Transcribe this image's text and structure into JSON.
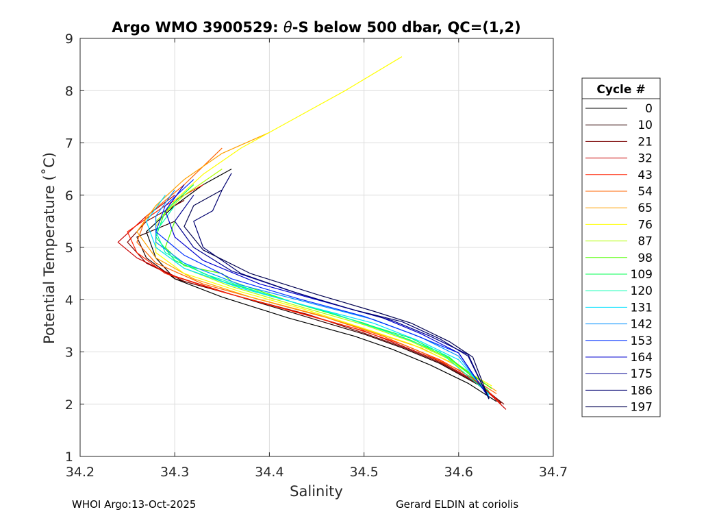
{
  "chart_data": {
    "type": "line",
    "title": {
      "prefix": "Argo WMO 3900529: ",
      "theta": "θ",
      "suffix": "-S below 500 dbar,  QC=(1,2)"
    },
    "xlabel": "Salinity",
    "ylabel": "Potential Temperature (˚C)",
    "xlim": [
      34.2,
      34.7
    ],
    "ylim": [
      1,
      9
    ],
    "xticks": [
      "34.2",
      "34.3",
      "34.4",
      "34.5",
      "34.6",
      "34.7"
    ],
    "xtick_values": [
      34.2,
      34.3,
      34.4,
      34.5,
      34.6,
      34.7
    ],
    "yticks": [
      "1",
      "2",
      "3",
      "4",
      "5",
      "6",
      "7",
      "8",
      "9"
    ],
    "ytick_values": [
      1,
      2,
      3,
      4,
      5,
      6,
      7,
      8,
      9
    ],
    "grid": true,
    "legend_title": "Cycle #",
    "legend_position": "right",
    "colormap": "jet",
    "series": [
      {
        "name": "0",
        "color": "#000000",
        "values": [
          [
            34.36,
            6.5
          ],
          [
            34.33,
            6.2
          ],
          [
            34.3,
            5.8
          ],
          [
            34.27,
            5.3
          ],
          [
            34.28,
            4.8
          ],
          [
            34.3,
            4.4
          ],
          [
            34.35,
            4.05
          ],
          [
            34.42,
            3.65
          ],
          [
            34.49,
            3.3
          ],
          [
            34.53,
            3.05
          ],
          [
            34.57,
            2.75
          ],
          [
            34.61,
            2.4
          ],
          [
            34.64,
            2.05
          ]
        ]
      },
      {
        "name": "10",
        "color": "#2a0000",
        "values": [
          [
            34.3,
            5.5
          ],
          [
            34.26,
            5.2
          ],
          [
            34.27,
            4.8
          ],
          [
            34.3,
            4.4
          ],
          [
            34.36,
            4.1
          ],
          [
            34.43,
            3.72
          ],
          [
            34.5,
            3.34
          ],
          [
            34.54,
            3.08
          ],
          [
            34.58,
            2.78
          ],
          [
            34.62,
            2.38
          ],
          [
            34.645,
            2.02
          ]
        ]
      },
      {
        "name": "21",
        "color": "#7a0000",
        "values": [
          [
            34.31,
            5.9
          ],
          [
            34.27,
            5.5
          ],
          [
            34.25,
            5.1
          ],
          [
            34.27,
            4.7
          ],
          [
            34.31,
            4.35
          ],
          [
            34.37,
            4.05
          ],
          [
            34.44,
            3.72
          ],
          [
            34.5,
            3.36
          ],
          [
            34.54,
            3.1
          ],
          [
            34.58,
            2.8
          ],
          [
            34.62,
            2.4
          ],
          [
            34.648,
            2.0
          ]
        ]
      },
      {
        "name": "32",
        "color": "#c80000",
        "values": [
          [
            34.3,
            6.0
          ],
          [
            34.27,
            5.6
          ],
          [
            34.24,
            5.1
          ],
          [
            34.26,
            4.8
          ],
          [
            34.3,
            4.45
          ],
          [
            34.36,
            4.1
          ],
          [
            34.43,
            3.76
          ],
          [
            34.5,
            3.4
          ],
          [
            34.54,
            3.12
          ],
          [
            34.58,
            2.82
          ],
          [
            34.62,
            2.42
          ],
          [
            34.65,
            1.9
          ]
        ]
      },
      {
        "name": "43",
        "color": "#ff2000",
        "values": [
          [
            34.33,
            6.2
          ],
          [
            34.29,
            5.8
          ],
          [
            34.25,
            5.3
          ],
          [
            34.26,
            4.9
          ],
          [
            34.29,
            4.5
          ],
          [
            34.35,
            4.15
          ],
          [
            34.42,
            3.8
          ],
          [
            34.49,
            3.45
          ],
          [
            34.54,
            3.15
          ],
          [
            34.58,
            2.85
          ],
          [
            34.62,
            2.45
          ],
          [
            34.645,
            2.0
          ]
        ]
      },
      {
        "name": "54",
        "color": "#ff6400",
        "values": [
          [
            34.35,
            6.9
          ],
          [
            34.31,
            6.2
          ],
          [
            34.27,
            5.6
          ],
          [
            34.26,
            5.1
          ],
          [
            34.28,
            4.7
          ],
          [
            34.33,
            4.3
          ],
          [
            34.39,
            4.0
          ],
          [
            34.46,
            3.66
          ],
          [
            34.52,
            3.3
          ],
          [
            34.56,
            3.0
          ],
          [
            34.6,
            2.66
          ],
          [
            34.64,
            2.2
          ]
        ]
      },
      {
        "name": "65",
        "color": "#ffa000",
        "values": [
          [
            34.4,
            7.2
          ],
          [
            34.35,
            6.8
          ],
          [
            34.31,
            6.3
          ],
          [
            34.28,
            5.8
          ],
          [
            34.26,
            5.3
          ],
          [
            34.28,
            4.8
          ],
          [
            34.32,
            4.4
          ],
          [
            34.38,
            4.05
          ],
          [
            34.45,
            3.72
          ],
          [
            34.51,
            3.38
          ],
          [
            34.56,
            3.08
          ],
          [
            34.6,
            2.72
          ],
          [
            34.64,
            2.25
          ]
        ]
      },
      {
        "name": "76",
        "color": "#ffff00",
        "values": [
          [
            34.54,
            8.65
          ],
          [
            34.48,
            8.0
          ],
          [
            34.42,
            7.4
          ],
          [
            34.37,
            6.9
          ],
          [
            34.33,
            6.4
          ],
          [
            34.3,
            5.9
          ],
          [
            34.28,
            5.4
          ],
          [
            34.28,
            4.9
          ],
          [
            34.31,
            4.5
          ],
          [
            34.37,
            4.15
          ],
          [
            34.44,
            3.8
          ],
          [
            34.5,
            3.45
          ],
          [
            34.55,
            3.15
          ],
          [
            34.59,
            2.82
          ],
          [
            34.635,
            2.35
          ]
        ]
      },
      {
        "name": "87",
        "color": "#b0ff00",
        "values": [
          [
            34.35,
            6.5
          ],
          [
            34.31,
            6.0
          ],
          [
            34.28,
            5.5
          ],
          [
            34.28,
            5.0
          ],
          [
            34.31,
            4.6
          ],
          [
            34.36,
            4.25
          ],
          [
            34.43,
            3.88
          ],
          [
            34.5,
            3.52
          ],
          [
            34.55,
            3.2
          ],
          [
            34.59,
            2.86
          ],
          [
            34.635,
            2.3
          ]
        ]
      },
      {
        "name": "98",
        "color": "#50ff00",
        "values": [
          [
            34.3,
            5.5
          ],
          [
            34.29,
            5.0
          ],
          [
            34.31,
            4.65
          ],
          [
            34.35,
            4.5
          ],
          [
            34.36,
            4.35
          ],
          [
            34.43,
            3.92
          ],
          [
            34.5,
            3.55
          ],
          [
            34.55,
            3.22
          ],
          [
            34.59,
            2.88
          ],
          [
            34.635,
            2.3
          ]
        ]
      },
      {
        "name": "109",
        "color": "#00ff50",
        "values": [
          [
            34.32,
            6.2
          ],
          [
            34.29,
            5.7
          ],
          [
            34.28,
            5.2
          ],
          [
            34.3,
            4.75
          ],
          [
            34.35,
            4.35
          ],
          [
            34.42,
            3.98
          ],
          [
            34.49,
            3.6
          ],
          [
            34.55,
            3.26
          ],
          [
            34.59,
            2.9
          ],
          [
            34.632,
            2.25
          ]
        ]
      },
      {
        "name": "120",
        "color": "#00ffb0",
        "values": [
          [
            34.3,
            5.8
          ],
          [
            34.28,
            5.3
          ],
          [
            34.29,
            4.9
          ],
          [
            34.33,
            4.5
          ],
          [
            34.4,
            4.08
          ],
          [
            34.47,
            3.72
          ],
          [
            34.53,
            3.35
          ],
          [
            34.58,
            3.0
          ],
          [
            34.632,
            2.2
          ]
        ]
      },
      {
        "name": "131",
        "color": "#00e0ff",
        "values": [
          [
            34.29,
            6.0
          ],
          [
            34.27,
            5.5
          ],
          [
            34.28,
            5.0
          ],
          [
            34.31,
            4.6
          ],
          [
            34.37,
            4.22
          ],
          [
            34.44,
            3.88
          ],
          [
            34.51,
            3.55
          ],
          [
            34.56,
            3.2
          ],
          [
            34.6,
            2.85
          ],
          [
            34.632,
            2.18
          ]
        ]
      },
      {
        "name": "142",
        "color": "#0090ff",
        "values": [
          [
            34.3,
            6.1
          ],
          [
            34.28,
            5.6
          ],
          [
            34.28,
            5.1
          ],
          [
            34.31,
            4.7
          ],
          [
            34.37,
            4.28
          ],
          [
            34.44,
            3.95
          ],
          [
            34.51,
            3.62
          ],
          [
            34.56,
            3.28
          ],
          [
            34.6,
            2.92
          ],
          [
            34.632,
            2.15
          ]
        ]
      },
      {
        "name": "153",
        "color": "#0030ff",
        "values": [
          [
            34.32,
            6.3
          ],
          [
            34.29,
            5.8
          ],
          [
            34.28,
            5.3
          ],
          [
            34.31,
            4.85
          ],
          [
            34.36,
            4.4
          ],
          [
            34.43,
            4.02
          ],
          [
            34.5,
            3.68
          ],
          [
            34.55,
            3.35
          ],
          [
            34.6,
            2.98
          ],
          [
            34.632,
            2.12
          ]
        ]
      },
      {
        "name": "164",
        "color": "#0000d0",
        "values": [
          [
            34.31,
            6.2
          ],
          [
            34.29,
            5.7
          ],
          [
            34.3,
            5.2
          ],
          [
            34.33,
            4.75
          ],
          [
            34.39,
            4.3
          ],
          [
            34.46,
            3.95
          ],
          [
            34.52,
            3.65
          ],
          [
            34.56,
            3.35
          ],
          [
            34.6,
            2.98
          ],
          [
            34.632,
            2.12
          ]
        ]
      },
      {
        "name": "175",
        "color": "#000090",
        "values": [
          [
            34.32,
            6.0
          ],
          [
            34.3,
            5.5
          ],
          [
            34.32,
            5.0
          ],
          [
            34.36,
            4.55
          ],
          [
            34.42,
            4.18
          ],
          [
            34.48,
            3.85
          ],
          [
            34.53,
            3.6
          ],
          [
            34.57,
            3.3
          ],
          [
            34.61,
            2.95
          ],
          [
            34.632,
            2.1
          ]
        ]
      },
      {
        "name": "186",
        "color": "#000070",
        "values": [
          [
            34.36,
            6.42
          ],
          [
            34.35,
            6.1
          ],
          [
            34.34,
            5.7
          ],
          [
            34.32,
            5.5
          ],
          [
            34.33,
            5.0
          ],
          [
            34.37,
            4.5
          ],
          [
            34.43,
            4.12
          ],
          [
            34.49,
            3.8
          ],
          [
            34.54,
            3.58
          ],
          [
            34.58,
            3.25
          ],
          [
            34.61,
            2.92
          ],
          [
            34.632,
            2.1
          ]
        ]
      },
      {
        "name": "197",
        "color": "#000050",
        "values": [
          [
            34.35,
            6.1
          ],
          [
            34.32,
            5.8
          ],
          [
            34.31,
            5.4
          ],
          [
            34.33,
            4.95
          ],
          [
            34.38,
            4.5
          ],
          [
            34.45,
            4.1
          ],
          [
            34.51,
            3.78
          ],
          [
            34.55,
            3.55
          ],
          [
            34.59,
            3.2
          ],
          [
            34.615,
            2.9
          ],
          [
            34.632,
            2.1
          ]
        ]
      }
    ]
  },
  "footer": {
    "left": "WHOI Argo:13-Oct-2025",
    "right": "Gerard ELDIN at coriolis"
  }
}
